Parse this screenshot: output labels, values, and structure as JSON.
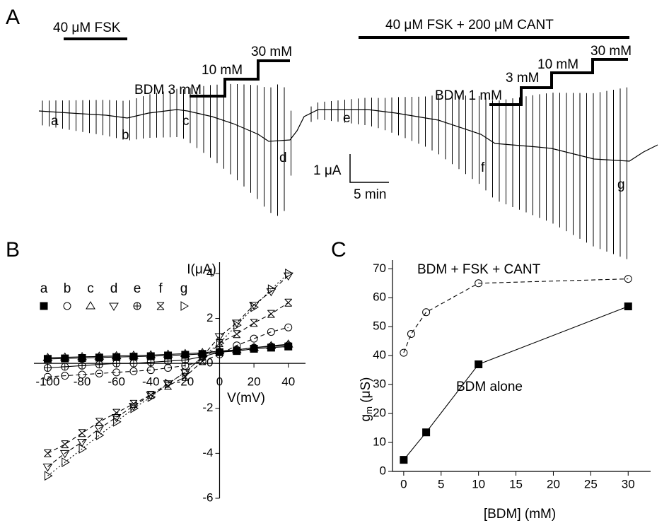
{
  "panel_a": {
    "panel_label": "A",
    "treatments": [
      "40 μM FSK",
      "40 μM FSK + 200 μM CANT"
    ],
    "steps_left": [
      "BDM 3 mM",
      "10 mM",
      "30 mM"
    ],
    "steps_right": [
      "BDM 1 mM",
      "3 mM",
      "10 mM",
      "30 mM"
    ],
    "time_points": [
      "a",
      "b",
      "c",
      "d",
      "e",
      "f",
      "g"
    ],
    "scale_bar": {
      "current": "1 μA",
      "time": "5 min"
    }
  },
  "chart_data": [
    {
      "type": "scatter",
      "panel_label": "B",
      "xlabel": "V(mV)",
      "ylabel": "I(μA)",
      "x": [
        -100,
        -90,
        -80,
        -70,
        -60,
        -50,
        -40,
        -30,
        -20,
        -10,
        0,
        10,
        20,
        30,
        40
      ],
      "xlim": [
        -108,
        50
      ],
      "ylim": [
        -6,
        4.5
      ],
      "xticks": [
        -100,
        -80,
        -60,
        -40,
        -20,
        0,
        20,
        40
      ],
      "yticks": [
        -6,
        -4,
        -2,
        0,
        2,
        4
      ],
      "series": [
        {
          "name": "a",
          "marker": "filled-square",
          "color": "#000000",
          "line_style": "solid",
          "values": [
            0.2,
            0.22,
            0.24,
            0.26,
            0.28,
            0.3,
            0.32,
            0.35,
            0.38,
            0.42,
            0.5,
            0.55,
            0.65,
            0.7,
            0.75
          ]
        },
        {
          "name": "b",
          "marker": "circle",
          "color": "#000000",
          "line_style": "dashed",
          "values": [
            -0.6,
            -0.55,
            -0.5,
            -0.45,
            -0.4,
            -0.35,
            -0.3,
            -0.2,
            -0.1,
            0.1,
            0.4,
            0.8,
            1.1,
            1.4,
            1.6
          ]
        },
        {
          "name": "c",
          "marker": "triangle-up",
          "color": "#000000",
          "line_style": "solid",
          "values": [
            0.25,
            0.27,
            0.29,
            0.31,
            0.33,
            0.35,
            0.37,
            0.4,
            0.43,
            0.47,
            0.55,
            0.6,
            0.7,
            0.78,
            0.85
          ]
        },
        {
          "name": "d",
          "marker": "triangle-down",
          "color": "#000000",
          "line_style": "dashed",
          "values": [
            -4.6,
            -4.0,
            -3.5,
            -2.9,
            -2.4,
            -1.9,
            -1.4,
            -0.9,
            -0.4,
            0.3,
            1.2,
            1.8,
            2.6,
            3.2,
            3.9
          ]
        },
        {
          "name": "e",
          "marker": "circle-plus",
          "color": "#000000",
          "line_style": "solid",
          "values": [
            -0.2,
            -0.15,
            -0.1,
            -0.05,
            0,
            0,
            0.05,
            0.1,
            0.15,
            0.3,
            0.5,
            0.6,
            0.7,
            0.75,
            0.8
          ]
        },
        {
          "name": "f",
          "marker": "x-box",
          "color": "#000000",
          "line_style": "dashed",
          "values": [
            -4.0,
            -3.6,
            -3.1,
            -2.6,
            -2.2,
            -1.8,
            -1.4,
            -1.0,
            -0.6,
            0.1,
            0.9,
            1.3,
            1.8,
            2.2,
            2.7
          ]
        },
        {
          "name": "g",
          "marker": "triangle-right",
          "color": "#000000",
          "line_style": "dotted",
          "values": [
            -5.0,
            -4.4,
            -3.8,
            -3.2,
            -2.6,
            -2.0,
            -1.5,
            -0.9,
            -0.4,
            0.3,
            0.9,
            1.7,
            2.5,
            3.3,
            4.0
          ]
        }
      ]
    },
    {
      "type": "scatter",
      "panel_label": "C",
      "xlabel": "[BDM] (mM)",
      "ylabel": [
        "g",
        "m",
        " (μS)"
      ],
      "xlim": [
        -1.5,
        33
      ],
      "ylim": [
        0,
        73
      ],
      "xticks": [
        0,
        5,
        10,
        15,
        20,
        25,
        30
      ],
      "yticks": [
        0,
        10,
        20,
        30,
        40,
        50,
        60,
        70
      ],
      "series": [
        {
          "name": "BDM + FSK + CANT",
          "marker": "circle",
          "color": "#000000",
          "line_style": "dashed",
          "x": [
            0,
            1,
            3,
            10,
            30
          ],
          "values": [
            41,
            47.5,
            55,
            65,
            66.5
          ]
        },
        {
          "name": "BDM alone",
          "marker": "filled-square",
          "color": "#000000",
          "line_style": "solid",
          "x": [
            0,
            3,
            10,
            30
          ],
          "values": [
            4,
            13.5,
            37,
            57
          ]
        }
      ]
    }
  ]
}
